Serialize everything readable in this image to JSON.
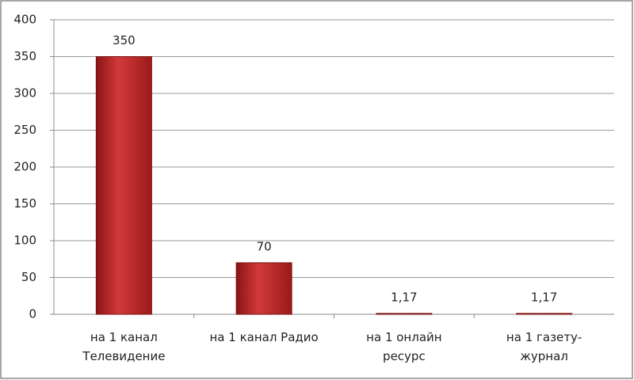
{
  "chart_data": {
    "type": "bar",
    "categories": [
      "на 1 канал Телевидение",
      "на 1 канал Радио",
      "на 1 онлайн ресурс",
      "на 1 газету-журнал"
    ],
    "values": [
      350,
      70,
      1.17,
      1.17
    ],
    "value_labels": [
      "350",
      "70",
      "1,17",
      "1,17"
    ],
    "color": "#c0262a",
    "ylim": [
      0,
      400
    ],
    "yticks": [
      0,
      50,
      100,
      150,
      200,
      250,
      300,
      350,
      400
    ],
    "grid": true
  }
}
